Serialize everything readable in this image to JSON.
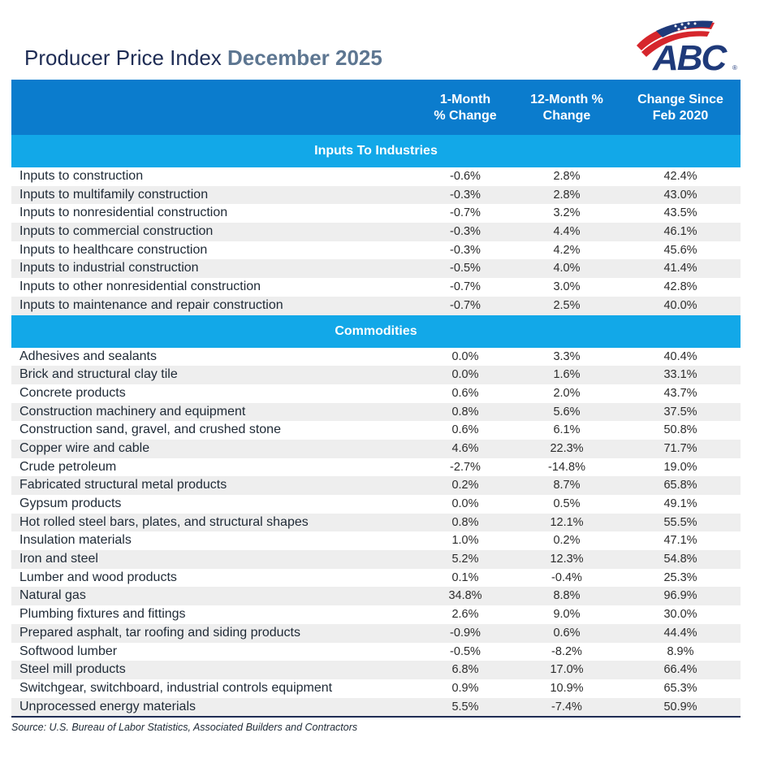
{
  "title": {
    "main": "Producer Price Index",
    "period": "December 2025"
  },
  "logo": {
    "text": "ABC",
    "registered": "®",
    "colors": {
      "blue": "#1f3a7a",
      "red": "#d6262c"
    }
  },
  "table": {
    "headers": [
      {
        "line1": "1-Month",
        "line2": "% Change"
      },
      {
        "line1": "12-Month %",
        "line2": "Change"
      },
      {
        "line1": "Change Since",
        "line2": "Feb 2020"
      }
    ],
    "sections": [
      {
        "title": "Inputs To Industries",
        "rows": [
          {
            "name": "Inputs to construction",
            "m1": "-0.6%",
            "m12": "2.8%",
            "since": "42.4%"
          },
          {
            "name": "Inputs to multifamily construction",
            "m1": "-0.3%",
            "m12": "2.8%",
            "since": "43.0%"
          },
          {
            "name": "Inputs to nonresidential construction",
            "m1": "-0.7%",
            "m12": "3.2%",
            "since": "43.5%"
          },
          {
            "name": "Inputs to commercial construction",
            "m1": "-0.3%",
            "m12": "4.4%",
            "since": "46.1%"
          },
          {
            "name": "Inputs to healthcare construction",
            "m1": "-0.3%",
            "m12": "4.2%",
            "since": "45.6%"
          },
          {
            "name": "Inputs to industrial construction",
            "m1": "-0.5%",
            "m12": "4.0%",
            "since": "41.4%"
          },
          {
            "name": "Inputs to other nonresidential construction",
            "m1": "-0.7%",
            "m12": "3.0%",
            "since": "42.8%"
          },
          {
            "name": "Inputs to maintenance and repair construction",
            "m1": "-0.7%",
            "m12": "2.5%",
            "since": "40.0%"
          }
        ]
      },
      {
        "title": "Commodities",
        "rows": [
          {
            "name": "Adhesives and sealants",
            "m1": "0.0%",
            "m12": "3.3%",
            "since": "40.4%"
          },
          {
            "name": "Brick and structural clay tile",
            "m1": "0.0%",
            "m12": "1.6%",
            "since": "33.1%"
          },
          {
            "name": "Concrete products",
            "m1": "0.6%",
            "m12": "2.0%",
            "since": "43.7%"
          },
          {
            "name": "Construction machinery and equipment",
            "m1": "0.8%",
            "m12": "5.6%",
            "since": "37.5%"
          },
          {
            "name": "Construction sand, gravel, and crushed stone",
            "m1": "0.6%",
            "m12": "6.1%",
            "since": "50.8%"
          },
          {
            "name": "Copper wire and cable",
            "m1": "4.6%",
            "m12": "22.3%",
            "since": "71.7%"
          },
          {
            "name": "Crude petroleum",
            "m1": "-2.7%",
            "m12": "-14.8%",
            "since": "19.0%"
          },
          {
            "name": "Fabricated structural metal products",
            "m1": "0.2%",
            "m12": "8.7%",
            "since": "65.8%"
          },
          {
            "name": "Gypsum products",
            "m1": "0.0%",
            "m12": "0.5%",
            "since": "49.1%"
          },
          {
            "name": "Hot rolled steel bars, plates, and structural shapes",
            "m1": "0.8%",
            "m12": "12.1%",
            "since": "55.5%"
          },
          {
            "name": "Insulation materials",
            "m1": "1.0%",
            "m12": "0.2%",
            "since": "47.1%"
          },
          {
            "name": "Iron and steel",
            "m1": "5.2%",
            "m12": "12.3%",
            "since": "54.8%"
          },
          {
            "name": "Lumber and wood products",
            "m1": "0.1%",
            "m12": "-0.4%",
            "since": "25.3%"
          },
          {
            "name": "Natural gas",
            "m1": "34.8%",
            "m12": "8.8%",
            "since": "96.9%"
          },
          {
            "name": "Plumbing fixtures and fittings",
            "m1": "2.6%",
            "m12": "9.0%",
            "since": "30.0%"
          },
          {
            "name": "Prepared asphalt, tar roofing and siding products",
            "m1": "-0.9%",
            "m12": "0.6%",
            "since": "44.4%"
          },
          {
            "name": "Softwood lumber",
            "m1": "-0.5%",
            "m12": "-8.2%",
            "since": "8.9%"
          },
          {
            "name": "Steel mill products",
            "m1": "6.8%",
            "m12": "17.0%",
            "since": "66.4%"
          },
          {
            "name": "Switchgear, switchboard, industrial controls equipment",
            "m1": "0.9%",
            "m12": "10.9%",
            "since": "65.3%"
          },
          {
            "name": "Unprocessed energy materials",
            "m1": "5.5%",
            "m12": "-7.4%",
            "since": "50.9%"
          }
        ]
      }
    ]
  },
  "source": {
    "label": "Source: U.S. Bureau of Labor Statistics, ",
    "org": "Associated Builders and Contractors"
  }
}
